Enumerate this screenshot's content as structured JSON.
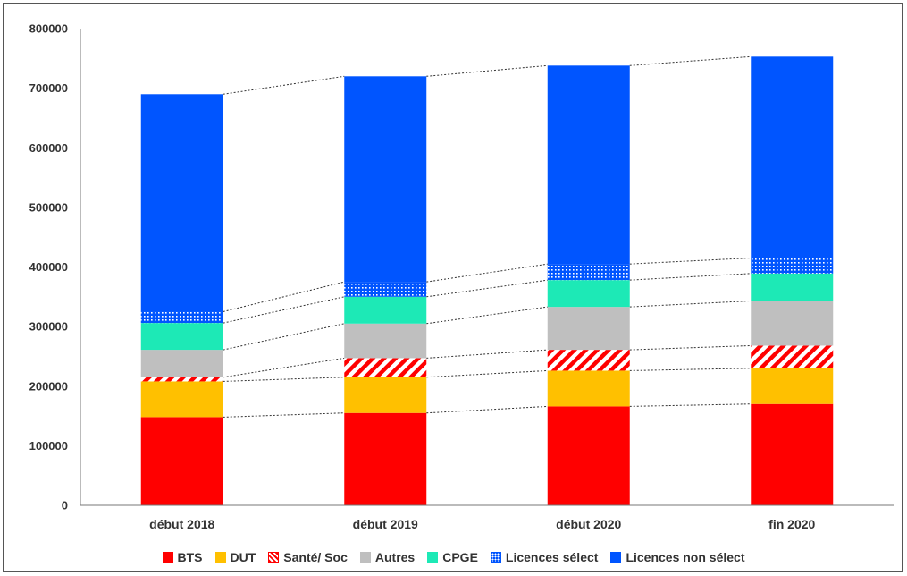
{
  "chart_data": {
    "type": "bar",
    "stacked": true,
    "categories": [
      "début 2018",
      "début 2019",
      "début 2020",
      "fin 2020"
    ],
    "ylim": [
      0,
      800000
    ],
    "yticks": [
      0,
      100000,
      200000,
      300000,
      400000,
      500000,
      600000,
      700000,
      800000
    ],
    "grid": false,
    "legend_position": "bottom",
    "connector_lines": "dotted",
    "series": [
      {
        "name": "BTS",
        "color": "#ff0000",
        "pattern": "solid",
        "values": [
          148000,
          155000,
          166000,
          170000
        ]
      },
      {
        "name": "DUT",
        "color": "#ffc000",
        "pattern": "solid",
        "values": [
          60000,
          60000,
          60000,
          60000
        ]
      },
      {
        "name": "Santé/ Soc",
        "color": "#ff0000",
        "pattern": "diagonal-hatch",
        "values": [
          7000,
          32000,
          35000,
          38000
        ]
      },
      {
        "name": "Autres",
        "color": "#bfbfbf",
        "pattern": "solid",
        "values": [
          46000,
          58000,
          72000,
          75000
        ]
      },
      {
        "name": "CPGE",
        "color": "#1de9b6",
        "pattern": "solid",
        "values": [
          45000,
          45000,
          45000,
          46000
        ]
      },
      {
        "name": "Licences sélect",
        "color": "#0055ff",
        "pattern": "dots",
        "values": [
          19000,
          25000,
          27000,
          26000
        ]
      },
      {
        "name": "Licences non sélect",
        "color": "#0055ff",
        "pattern": "solid",
        "values": [
          365000,
          345000,
          333000,
          338000
        ]
      }
    ]
  }
}
